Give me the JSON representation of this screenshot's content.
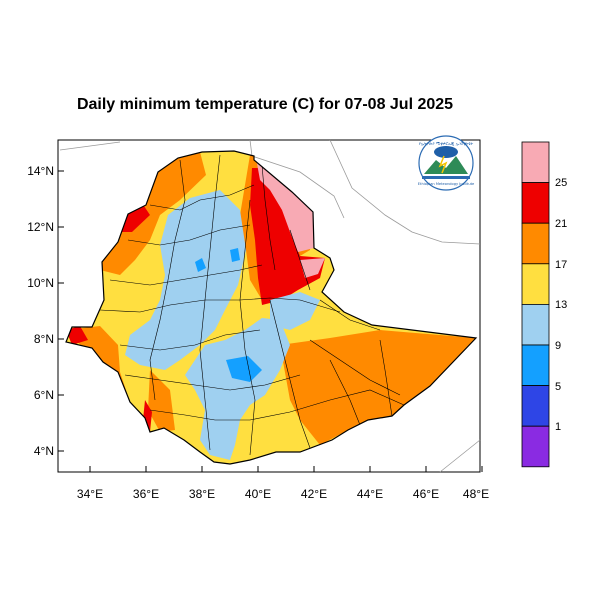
{
  "title": "Daily minimum temperature (C) for 07-08 Jul 2025",
  "map": {
    "x_ticks": [
      "34°E",
      "36°E",
      "38°E",
      "40°E",
      "42°E",
      "44°E",
      "46°E",
      "48°E"
    ],
    "y_ticks": [
      "14°N",
      "12°N",
      "10°N",
      "8°N",
      "6°N",
      "4°N"
    ],
    "lon_range": [
      32.9,
      48.2
    ],
    "lat_range": [
      3.1,
      15.0
    ],
    "land_color": "#ffffff",
    "border_color": "#000000",
    "country": "Ethiopia"
  },
  "legend": {
    "labels": [
      "25",
      "21",
      "17",
      "13",
      "9",
      "5",
      "1"
    ],
    "colors": [
      "#f8aab4",
      "#ee0000",
      "#ff8a00",
      "#ffdf40",
      "#9fd0f0",
      "#14a0ff",
      "#2e45e6",
      "#8a2be2"
    ],
    "placement": "right"
  },
  "logo": {
    "name": "ethiopian-meteorology-institute-logo",
    "text_top": "የኢትዮጵያ ሚቲዎሮሎጂ ኢንስቲትዩት",
    "text_bottom": "Ethiopian Meteorology Institute"
  }
}
